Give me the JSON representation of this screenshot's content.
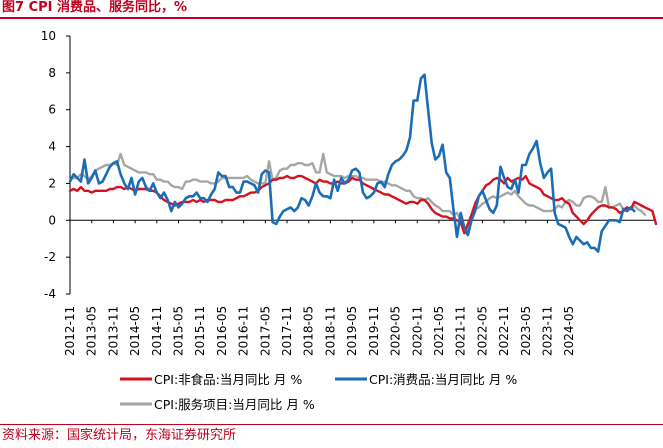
{
  "figure": {
    "title": "图7  CPI 消费品、服务同比，%",
    "source": "资料来源：国家统计局，东海证券研究所"
  },
  "chart_data": {
    "type": "line",
    "title": "图7  CPI 消费品、服务同比，%",
    "xlabel": "",
    "ylabel": "",
    "ylim": [
      -4,
      10
    ],
    "yticks": [
      -4,
      -2,
      0,
      2,
      4,
      6,
      8,
      10
    ],
    "start": "2012-11",
    "x_tick_labels": [
      "2012-11",
      "2013-05",
      "2013-11",
      "2014-05",
      "2014-11",
      "2015-05",
      "2015-11",
      "2016-05",
      "2016-11",
      "2017-05",
      "2017-11",
      "2018-05",
      "2018-11",
      "2019-05",
      "2019-11",
      "2020-05",
      "2020-11",
      "2021-05",
      "2021-11",
      "2022-05",
      "2022-11",
      "2023-05",
      "2023-11",
      "2024-05"
    ],
    "legend_position": "bottom",
    "series": [
      {
        "name": "CPI:非食品:当月同比 月 %",
        "color": "#d7111f",
        "values": [
          1.6,
          1.7,
          1.6,
          1.8,
          1.6,
          1.6,
          1.5,
          1.6,
          1.6,
          1.6,
          1.6,
          1.7,
          1.7,
          1.8,
          1.8,
          1.7,
          1.8,
          1.7,
          1.6,
          1.7,
          1.7,
          1.7,
          1.6,
          1.6,
          1.5,
          1.3,
          1.1,
          1.0,
          0.9,
          0.8,
          0.9,
          1.0,
          1.0,
          1.0,
          1.1,
          1.0,
          1.1,
          1.0,
          1.1,
          1.1,
          1.1,
          1.0,
          1.0,
          1.1,
          1.1,
          1.1,
          1.2,
          1.3,
          1.3,
          1.4,
          1.5,
          1.5,
          1.6,
          1.8,
          1.9,
          2.0,
          2.2,
          2.2,
          2.3,
          2.3,
          2.4,
          2.3,
          2.3,
          2.4,
          2.4,
          2.3,
          2.2,
          2.1,
          2.0,
          2.2,
          2.1,
          2.1,
          2.0,
          2.0,
          2.1,
          2.0,
          2.0,
          2.1,
          2.3,
          2.2,
          2.2,
          2.0,
          1.9,
          1.8,
          1.7,
          1.6,
          1.5,
          1.4,
          1.4,
          1.3,
          1.2,
          1.1,
          1.0,
          0.9,
          1.0,
          1.0,
          0.9,
          1.1,
          1.1,
          0.9,
          0.6,
          0.4,
          0.3,
          0.2,
          0.2,
          0.1,
          0.1,
          0.0,
          -0.1,
          -0.7,
          -0.2,
          0.3,
          0.9,
          1.3,
          1.6,
          1.9,
          2.0,
          2.2,
          2.3,
          2.2,
          2.0,
          2.3,
          2.1,
          2.2,
          2.3,
          2.2,
          2.4,
          2.0,
          1.9,
          1.8,
          1.7,
          1.4,
          1.3,
          1.2,
          1.1,
          1.1,
          1.2,
          1.0,
          0.9,
          0.4,
          0.2,
          0.0,
          -0.2,
          0.0,
          0.3,
          0.5,
          0.7,
          0.8,
          0.8,
          0.7,
          0.7,
          0.6,
          0.4,
          0.5,
          0.7,
          0.6,
          1.0,
          0.9,
          0.8,
          0.7,
          0.6,
          0.5,
          -0.2
        ]
      },
      {
        "name": "CPI:消费品:当月同比 月 %",
        "color": "#1b6eb5",
        "values": [
          2.1,
          2.5,
          2.3,
          2.1,
          3.3,
          2.0,
          2.3,
          2.7,
          2.0,
          2.1,
          2.5,
          2.9,
          3.1,
          3.2,
          2.5,
          2.0,
          1.7,
          2.3,
          1.4,
          2.1,
          2.3,
          1.8,
          1.6,
          2.0,
          1.5,
          1.2,
          1.5,
          1.1,
          0.5,
          1.0,
          0.7,
          0.9,
          1.2,
          1.3,
          1.3,
          1.5,
          1.2,
          1.2,
          1.0,
          1.4,
          1.7,
          2.6,
          2.4,
          2.4,
          1.8,
          1.8,
          1.5,
          1.5,
          2.1,
          2.1,
          2.0,
          1.9,
          1.5,
          2.5,
          2.7,
          2.6,
          -0.1,
          -0.2,
          0.2,
          0.5,
          0.6,
          0.7,
          0.5,
          0.7,
          1.2,
          1.1,
          0.8,
          1.3,
          2.0,
          1.5,
          1.3,
          1.3,
          1.2,
          2.2,
          1.6,
          2.3,
          2.0,
          2.2,
          2.7,
          2.8,
          2.6,
          1.5,
          1.2,
          1.3,
          1.5,
          2.0,
          2.1,
          1.8,
          2.5,
          3.0,
          3.2,
          3.3,
          3.5,
          3.8,
          4.5,
          6.5,
          6.5,
          7.7,
          7.9,
          6.0,
          4.2,
          3.3,
          3.5,
          4.1,
          2.6,
          2.3,
          0.6,
          -0.9,
          0.4,
          -0.4,
          -0.8,
          0.0,
          0.5,
          1.3,
          1.6,
          1.1,
          0.6,
          0.4,
          0.8,
          2.9,
          2.3,
          1.8,
          1.7,
          2.2,
          1.5,
          3.0,
          3.0,
          3.6,
          3.9,
          4.3,
          3.1,
          2.3,
          2.6,
          2.8,
          0.4,
          -0.2,
          -0.3,
          -0.4,
          -0.9,
          -1.3,
          -0.9,
          -1.1,
          -1.3,
          -1.2,
          -1.5,
          -1.5,
          -1.7,
          -0.6,
          -0.3,
          0.0,
          0.0,
          0.0,
          -0.1,
          0.6,
          0.5,
          0.7,
          0.5
        ]
      },
      {
        "name": "CPI:服务项目:当月同比 月 %",
        "color": "#a6a6a6",
        "values": [
          2.2,
          2.3,
          2.3,
          2.5,
          2.4,
          2.2,
          2.4,
          2.7,
          2.8,
          2.9,
          3.0,
          3.0,
          3.1,
          3.0,
          3.6,
          3.0,
          2.9,
          2.8,
          2.7,
          2.6,
          2.6,
          2.6,
          2.5,
          2.5,
          2.2,
          2.2,
          2.1,
          2.1,
          1.9,
          1.8,
          1.8,
          1.7,
          2.1,
          2.1,
          2.2,
          2.2,
          2.1,
          2.1,
          2.1,
          2.0,
          2.0,
          2.1,
          2.3,
          2.3,
          2.3,
          2.3,
          2.3,
          2.3,
          2.3,
          2.4,
          2.2,
          2.1,
          2.0,
          2.0,
          2.0,
          3.2,
          2.2,
          2.3,
          2.7,
          2.8,
          2.8,
          3.0,
          3.0,
          3.1,
          3.1,
          3.0,
          3.0,
          3.1,
          2.6,
          2.6,
          3.6,
          2.6,
          2.5,
          2.4,
          2.4,
          2.4,
          2.3,
          2.4,
          2.4,
          2.4,
          2.3,
          2.3,
          2.2,
          2.2,
          2.2,
          2.2,
          2.0,
          2.1,
          2.0,
          1.9,
          1.9,
          1.8,
          1.7,
          1.6,
          1.6,
          1.3,
          1.2,
          1.2,
          1.1,
          1.2,
          1.0,
          0.8,
          0.7,
          0.5,
          0.5,
          0.5,
          0.3,
          0.4,
          0.0,
          -0.6,
          -0.5,
          0.2,
          0.6,
          0.7,
          0.9,
          1.0,
          1.2,
          1.3,
          1.2,
          1.3,
          1.4,
          1.5,
          1.4,
          1.6,
          1.3,
          1.1,
          0.9,
          0.8,
          0.8,
          0.7,
          0.6,
          0.5,
          0.5,
          0.5,
          0.6,
          0.8,
          0.7,
          1.0,
          1.1,
          1.0,
          0.8,
          0.8,
          1.2,
          1.3,
          1.3,
          1.2,
          1.0,
          1.0,
          1.8,
          0.7,
          0.7,
          0.8,
          0.9,
          0.6,
          0.7,
          0.6,
          0.8,
          0.6,
          0.5,
          0.3
        ]
      }
    ]
  }
}
